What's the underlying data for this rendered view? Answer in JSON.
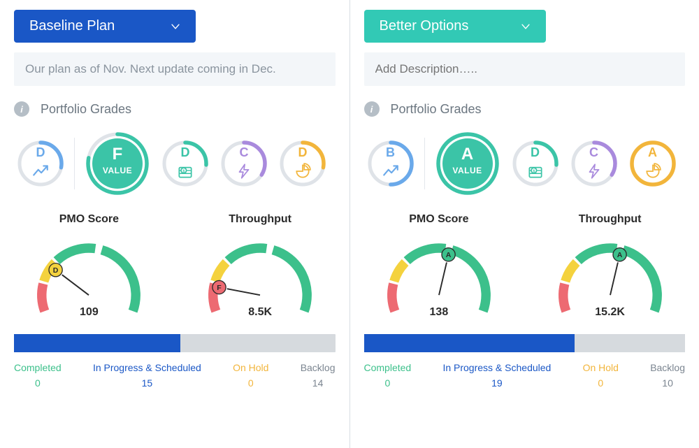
{
  "colors": {
    "dropdown_left": "#1a57c6",
    "dropdown_right": "#32c9b5",
    "desc_bg": "#f3f6f9",
    "desc_text": "#8a949e",
    "divider": "#d8dde2",
    "green": "#3cc08b",
    "yellow": "#f4d23e",
    "red": "#ed6a72",
    "blue": "#6aa9ea",
    "purple": "#a98add",
    "orange": "#f2b53b",
    "teal": "#3bc4a7",
    "grey_ring": "#dfe3e8",
    "bar_completed": "#3cc08b",
    "bar_inprogress": "#1a57c6",
    "bar_onhold": "#f2b53b",
    "bar_backlog": "#d6dade",
    "text_dark": "#2a2a2a",
    "text_muted": "#7b8590"
  },
  "left": {
    "dropdown_label": "Baseline Plan",
    "description": "Our plan as of Nov. Next update coming in Dec.",
    "section_title": "Portfolio Grades",
    "grades": [
      {
        "letter": "D",
        "color": "#6aa9ea",
        "arc_pct": 28,
        "icon": "trend"
      },
      {
        "letter": "F",
        "sublabel": "VALUE",
        "color": "#3bc4a7",
        "arc_pct": 78,
        "filled": true,
        "big": true
      },
      {
        "letter": "D",
        "color": "#3bc4a7",
        "arc_pct": 26,
        "icon": "money"
      },
      {
        "letter": "C",
        "color": "#a98add",
        "arc_pct": 34,
        "icon": "bolt"
      },
      {
        "letter": "D",
        "color": "#f2b53b",
        "arc_pct": 28,
        "icon": "pie"
      }
    ],
    "gauges": [
      {
        "title": "PMO Score",
        "value": "109",
        "needle_pct": 26,
        "badge": "D",
        "badge_color": "#f4d23e"
      },
      {
        "title": "Throughput",
        "value": "8.5K",
        "needle_pct": 14,
        "badge": "F",
        "badge_color": "#ed6a72"
      }
    ],
    "progress": {
      "completed": 0,
      "in_progress": 15,
      "on_hold": 0,
      "backlog": 14
    },
    "status_labels": {
      "completed": "Completed",
      "in_progress": "In Progress & Scheduled",
      "on_hold": "On Hold",
      "backlog": "Backlog"
    }
  },
  "right": {
    "dropdown_label": "Better Options",
    "description_placeholder": "Add Description…..",
    "section_title": "Portfolio Grades",
    "grades": [
      {
        "letter": "B",
        "color": "#6aa9ea",
        "arc_pct": 50,
        "icon": "trend"
      },
      {
        "letter": "A",
        "sublabel": "VALUE",
        "color": "#3bc4a7",
        "arc_pct": 100,
        "filled": true,
        "big": true
      },
      {
        "letter": "D",
        "color": "#3bc4a7",
        "arc_pct": 26,
        "icon": "money"
      },
      {
        "letter": "C",
        "color": "#a98add",
        "arc_pct": 34,
        "icon": "bolt"
      },
      {
        "letter": "A",
        "color": "#f2b53b",
        "arc_pct": 100,
        "icon": "pie"
      }
    ],
    "gauges": [
      {
        "title": "PMO Score",
        "value": "138",
        "needle_pct": 56,
        "badge": "A",
        "badge_color": "#3cc08b"
      },
      {
        "title": "Throughput",
        "value": "15.2K",
        "needle_pct": 56,
        "badge": "A",
        "badge_color": "#3cc08b"
      }
    ],
    "progress": {
      "completed": 0,
      "in_progress": 19,
      "on_hold": 0,
      "backlog": 10
    },
    "status_labels": {
      "completed": "Completed",
      "in_progress": "In Progress & Scheduled",
      "on_hold": "On Hold",
      "backlog": "Backlog"
    }
  }
}
